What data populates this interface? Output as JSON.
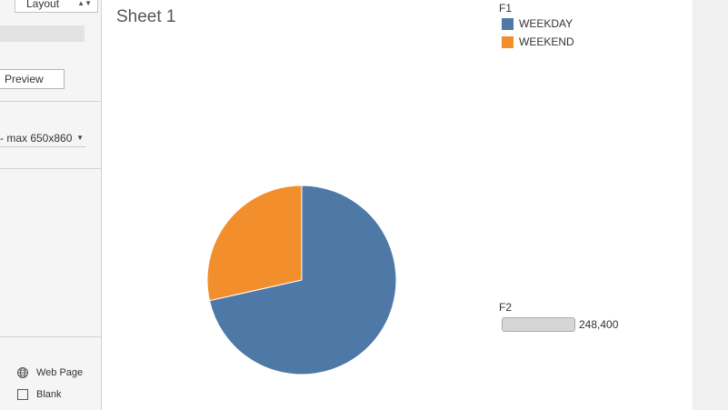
{
  "left_panel": {
    "layout_tab_label": "Layout",
    "preview_label": "Preview",
    "size_value": "- max 650x860",
    "objects": [
      {
        "label": "Web Page",
        "icon": "globe-icon"
      },
      {
        "label": "Blank",
        "icon": "blank-square-icon"
      }
    ]
  },
  "sheet": {
    "title": "Sheet 1"
  },
  "colors": {
    "weekday": "#4e79a7",
    "weekend": "#f28e2b"
  },
  "legend": {
    "color_title": "F1",
    "items": [
      {
        "label": "WEEKDAY",
        "color": "#4e79a7"
      },
      {
        "label": "WEEKEND",
        "color": "#f28e2b"
      }
    ],
    "size_title": "F2",
    "size_value": "248,400"
  },
  "chart_data": {
    "type": "pie",
    "title": "Sheet 1",
    "categories": [
      "WEEKDAY",
      "WEEKEND"
    ],
    "values": [
      71.5,
      28.5
    ],
    "colors": [
      "#4e79a7",
      "#f28e2b"
    ],
    "legend": "top-right"
  }
}
